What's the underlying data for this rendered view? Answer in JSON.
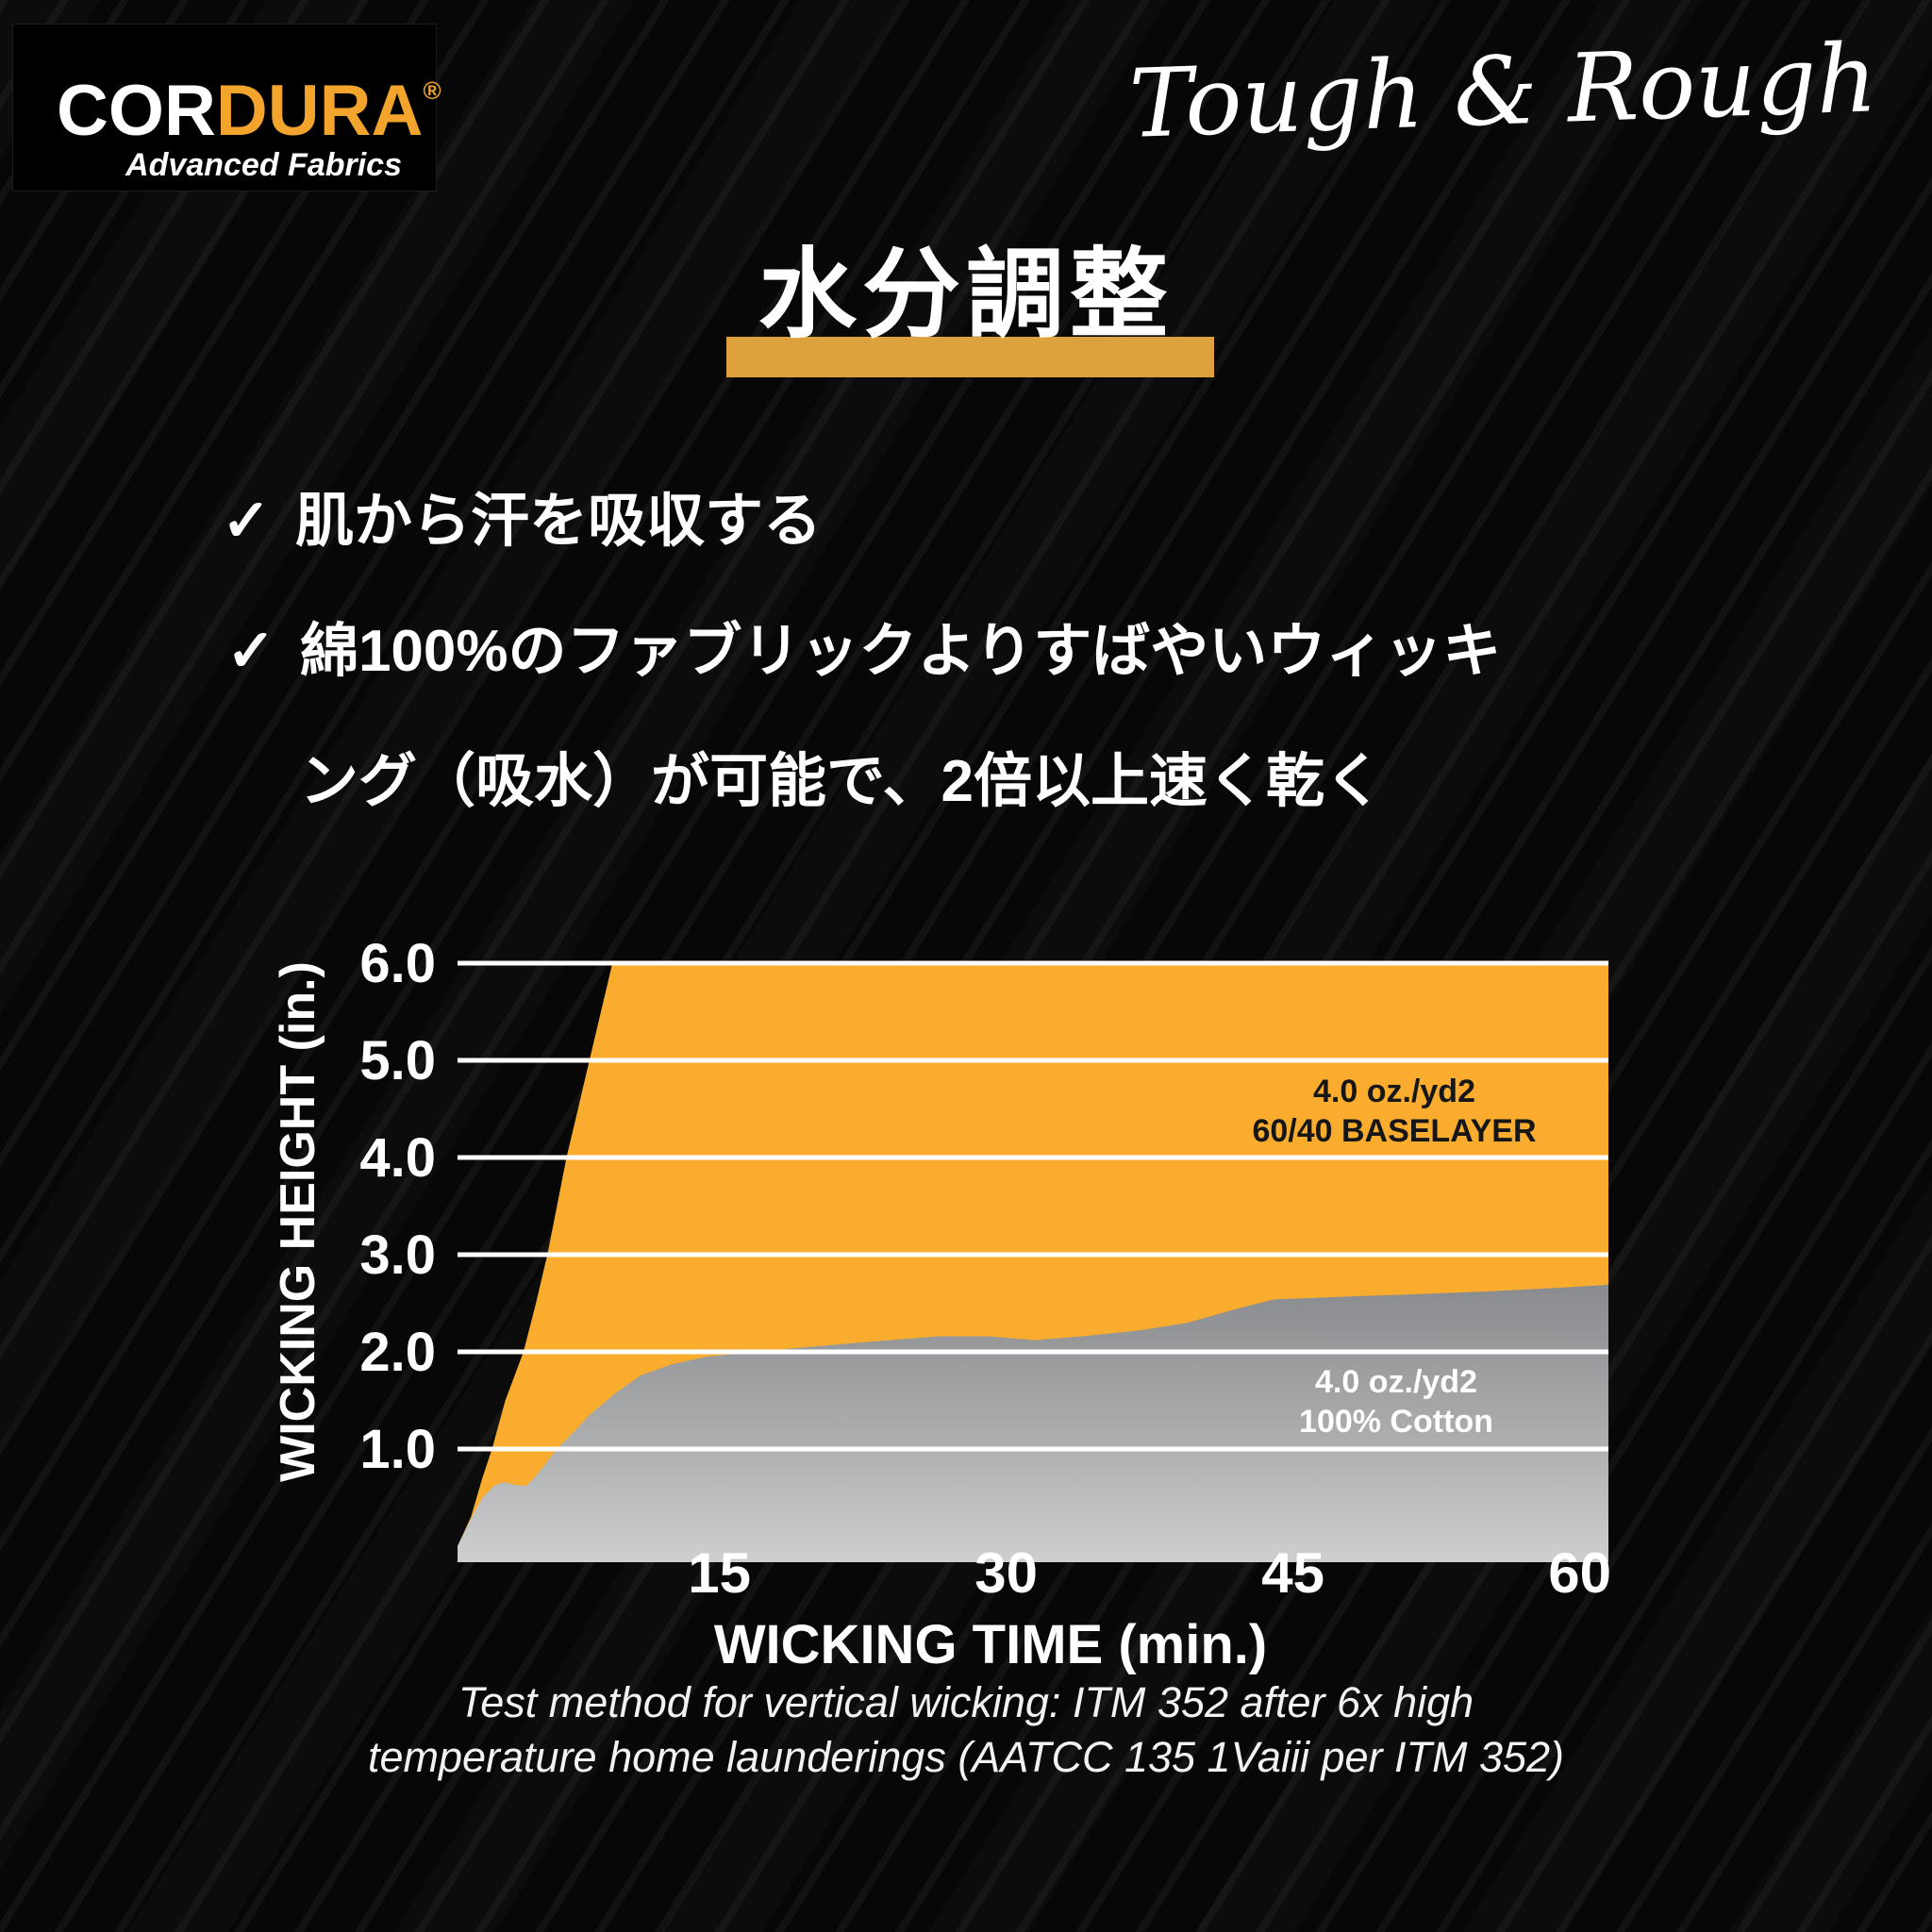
{
  "brand": {
    "logo_text_primary": "COR",
    "logo_text_secondary": "DURA",
    "logo_reg_mark": "®",
    "logo_subtitle": "Advanced Fabrics",
    "tagline": "Tough & Rough"
  },
  "heading": {
    "title": "水分調整"
  },
  "bullets": {
    "check": "✓",
    "item1": "肌から汗を吸収する",
    "item2_line1": "綿100%のファブリックよりすばやいウィッキ",
    "item2_line2": "ング（吸水）が可能で、2倍以上速く乾く"
  },
  "caption": {
    "line1": "Test method for vertical wicking: ITM 352 after 6x high",
    "line2": "temperature home launderings (AATCC 135 1Vaiii per ITM 352)"
  },
  "colors": {
    "background": "#070707",
    "accent_yellow": "#F9AC2E",
    "title_bar_gold": "#DDA23E",
    "logo_yellow": "#F2A42C",
    "cotton_gray_top": "#898B8E",
    "cotton_gray_mid": "#ABADAF",
    "cotton_gray_bottom": "#CDCFD0",
    "grid_white": "#FFFFFF",
    "annotation_black": "#161616"
  },
  "chart_data": {
    "type": "area",
    "title": "",
    "xlabel": "WICKING TIME (min.)",
    "ylabel": "WICKING HEIGHT (in.)",
    "x_unit": "minutes",
    "y_unit": "inches",
    "x_ticks": [
      15,
      30,
      45,
      60
    ],
    "y_ticks": [
      1.0,
      2.0,
      3.0,
      4.0,
      5.0,
      6.0
    ],
    "y_tick_labels": [
      "1.0",
      "2.0",
      "3.0",
      "4.0",
      "5.0",
      "6.0"
    ],
    "xlim": [
      1.3,
      61.5
    ],
    "ylim": [
      0,
      6.0
    ],
    "grid": "horizontal white lines over filled areas",
    "legend_position": "labels inside areas",
    "series": [
      {
        "name": "60/40 Baselayer",
        "label_lines": [
          "4.0 oz./yd2",
          "60/40 BASELAYER"
        ],
        "fill": "#F9AC2E",
        "points": [
          [
            1.3,
            0
          ],
          [
            2,
            0.3
          ],
          [
            2.6,
            0.7
          ],
          [
            3.1,
            1.0
          ],
          [
            3.8,
            1.5
          ],
          [
            4.75,
            2.0
          ],
          [
            5.4,
            2.5
          ],
          [
            6.0,
            3.0
          ],
          [
            6.5,
            3.5
          ],
          [
            7.0,
            4.0
          ],
          [
            7.6,
            4.5
          ],
          [
            8.2,
            5.0
          ],
          [
            8.8,
            5.5
          ],
          [
            9.4,
            6.0
          ],
          [
            10,
            6.0
          ],
          [
            61.5,
            6.0
          ]
        ]
      },
      {
        "name": "100% Cotton",
        "label_lines": [
          "4.0 oz./yd2",
          "100% Cotton"
        ],
        "fill_top": "#898B8E",
        "fill_bottom": "#CDCFD0",
        "points": [
          [
            1.3,
            0
          ],
          [
            2,
            0.28
          ],
          [
            2.6,
            0.5
          ],
          [
            3.2,
            0.62
          ],
          [
            3.7,
            0.66
          ],
          [
            4.3,
            0.63
          ],
          [
            4.9,
            0.62
          ],
          [
            5.4,
            0.72
          ],
          [
            6.5,
            1.0
          ],
          [
            7.4,
            1.18
          ],
          [
            8.2,
            1.35
          ],
          [
            9.6,
            1.58
          ],
          [
            10.9,
            1.76
          ],
          [
            12.5,
            1.87
          ],
          [
            14.3,
            1.95
          ],
          [
            18,
            2.02
          ],
          [
            22,
            2.09
          ],
          [
            26.5,
            2.16
          ],
          [
            29,
            2.16
          ],
          [
            31.5,
            2.12
          ],
          [
            34,
            2.16
          ],
          [
            37,
            2.22
          ],
          [
            39.5,
            2.3
          ],
          [
            42,
            2.44
          ],
          [
            44,
            2.54
          ],
          [
            48,
            2.57
          ],
          [
            51,
            2.59
          ],
          [
            55,
            2.62
          ],
          [
            59,
            2.66
          ],
          [
            61.5,
            2.69
          ]
        ]
      }
    ]
  }
}
